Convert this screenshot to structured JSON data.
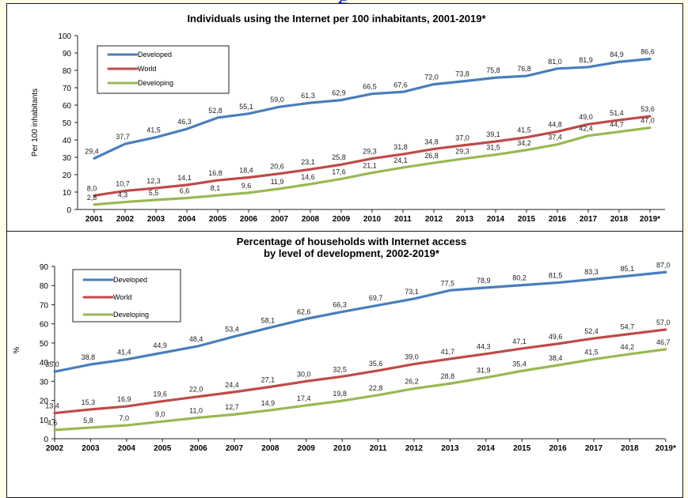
{
  "header_fragment": "g",
  "chart_data": [
    {
      "type": "line",
      "title": "Individuals using the Internet per 100 inhabitants, 2001-2019*",
      "title_lines": [
        "Individuals using the Internet per 100 inhabitants, 2001-2019*"
      ],
      "ylabel": "Per 100 inhabitants",
      "xlabel": "",
      "ylim": [
        0,
        100
      ],
      "yticks": [
        "0",
        "10",
        "20",
        "30",
        "40",
        "50",
        "60",
        "70",
        "80",
        "90",
        "100"
      ],
      "x": [
        "2001",
        "2002",
        "2003",
        "2004",
        "2005",
        "2006",
        "2007",
        "2008",
        "2009",
        "2010",
        "2011",
        "2012",
        "2013",
        "2014",
        "2015",
        "2016",
        "2017",
        "2018",
        "2019*"
      ],
      "grid": false,
      "legend_position": "top-left",
      "series": [
        {
          "name": "Developed",
          "color": "#4a7ebb",
          "values": [
            29.4,
            37.7,
            41.5,
            46.3,
            52.8,
            55.1,
            59.0,
            61.3,
            62.9,
            66.5,
            67.6,
            72.0,
            73.8,
            75.8,
            76.8,
            81.0,
            81.9,
            84.9,
            86.6
          ],
          "labels": [
            "29,4",
            "37,7",
            "41,5",
            "46,3",
            "52,8",
            "55,1",
            "59,0",
            "61,3",
            "62,9",
            "66,5",
            "67,6",
            "72,0",
            "73,8",
            "75,8",
            "76,8",
            "81,0",
            "81,9",
            "84,9",
            "86,6"
          ]
        },
        {
          "name": "World",
          "color": "#be4b48",
          "values": [
            8.0,
            10.7,
            12.3,
            14.1,
            16.8,
            18.4,
            20.6,
            23.1,
            25.8,
            29.3,
            31.8,
            34.8,
            37.0,
            39.1,
            41.5,
            44.8,
            49.0,
            51.4,
            53.6
          ],
          "labels": [
            "8,0",
            "10,7",
            "12,3",
            "14,1",
            "16,8",
            "18,4",
            "20,6",
            "23,1",
            "25,8",
            "29,3",
            "31,8",
            "34,8",
            "37,0",
            "39,1",
            "41,5",
            "44,8",
            "49,0",
            "51,4",
            "53,6"
          ]
        },
        {
          "name": "Developing",
          "color": "#98b954",
          "values": [
            2.8,
            4.3,
            5.5,
            6.6,
            8.1,
            9.6,
            11.9,
            14.6,
            17.6,
            21.1,
            24.1,
            26.8,
            29.3,
            31.5,
            34.2,
            37.4,
            42.4,
            44.7,
            47.0
          ],
          "labels": [
            "2,8",
            "4,3",
            "5,5",
            "6,6",
            "8,1",
            "9,6",
            "11,9",
            "14,6",
            "17,6",
            "21,1",
            "24,1",
            "26,8",
            "29,3",
            "31,5",
            "34,2",
            "37,4",
            "42,4",
            "44,7",
            "47,0"
          ]
        }
      ]
    },
    {
      "type": "line",
      "title": "Percentage of households with Internet access by level of development, 2002-2019*",
      "title_lines": [
        "Percentage of households with Internet access",
        "by level of development, 2002-2019*"
      ],
      "ylabel": "%",
      "xlabel": "",
      "ylim": [
        0,
        90
      ],
      "yticks": [
        "0",
        "10",
        "20",
        "30",
        "40",
        "50",
        "60",
        "70",
        "80",
        "90"
      ],
      "x": [
        "2002",
        "2003",
        "2004",
        "2005",
        "2006",
        "2007",
        "2008",
        "2009",
        "2010",
        "2011",
        "2012",
        "2013",
        "2014",
        "2015",
        "2016",
        "2017",
        "2018",
        "2019*"
      ],
      "grid": false,
      "legend_position": "top-left",
      "series": [
        {
          "name": "Developed",
          "color": "#4a7ebb",
          "values": [
            35.0,
            38.8,
            41.4,
            44.9,
            48.4,
            53.4,
            58.1,
            62.6,
            66.3,
            69.7,
            73.1,
            77.5,
            78.9,
            80.2,
            81.5,
            83.3,
            85.1,
            87.0
          ],
          "labels": [
            "35,0",
            "38,8",
            "41,4",
            "44,9",
            "48,4",
            "53,4",
            "58,1",
            "62,6",
            "66,3",
            "69,7",
            "73,1",
            "77,5",
            "78,9",
            "80,2",
            "81,5",
            "83,3",
            "85,1",
            "87,0"
          ]
        },
        {
          "name": "World",
          "color": "#be4b48",
          "values": [
            13.4,
            15.3,
            16.9,
            19.6,
            22.0,
            24.4,
            27.1,
            30.0,
            32.5,
            35.6,
            39.0,
            41.7,
            44.3,
            47.1,
            49.6,
            52.4,
            54.7,
            57.0
          ],
          "labels": [
            "13,4",
            "15,3",
            "16,9",
            "19,6",
            "22,0",
            "24,4",
            "27,1",
            "30,0",
            "32,5",
            "35,6",
            "39,0",
            "41,7",
            "44,3",
            "47,1",
            "49,6",
            "52,4",
            "54,7",
            "57,0"
          ]
        },
        {
          "name": "Developing",
          "color": "#98b954",
          "values": [
            4.6,
            5.8,
            7.0,
            9.0,
            11.0,
            12.7,
            14.9,
            17.4,
            19.8,
            22.8,
            26.2,
            28.8,
            31.9,
            35.4,
            38.4,
            41.5,
            44.2,
            46.7
          ],
          "labels": [
            "4,6",
            "5,8",
            "7,0",
            "9,0",
            "11,0",
            "12,7",
            "14,9",
            "17,4",
            "19,8",
            "22,8",
            "26,2",
            "28,8",
            "31,9",
            "35,4",
            "38,4",
            "41,5",
            "44,2",
            "46,7"
          ]
        }
      ]
    }
  ]
}
